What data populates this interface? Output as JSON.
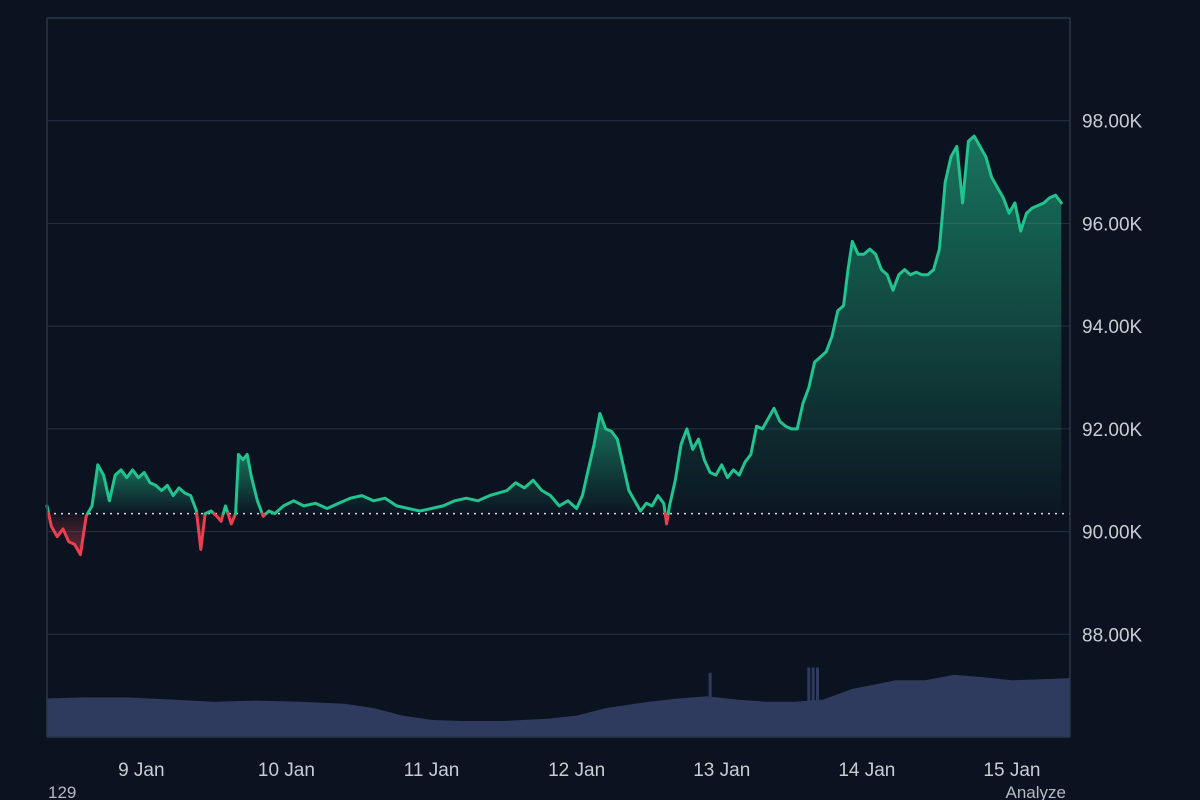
{
  "chart_data": {
    "type": "area",
    "title": "",
    "xlabel": "",
    "ylabel": "",
    "x_ticks": [
      "9 Jan",
      "10 Jan",
      "11 Jan",
      "12 Jan",
      "13 Jan",
      "14 Jan",
      "15 Jan"
    ],
    "y_ticks": [
      "88.00K",
      "90.00K",
      "92.00K",
      "94.00K",
      "96.00K",
      "98.00K"
    ],
    "y_tick_values": [
      88000,
      90000,
      92000,
      94000,
      96000,
      98000
    ],
    "ylim": [
      86000,
      100000
    ],
    "xlim_days": [
      8.35,
      15.4
    ],
    "baseline": 90350,
    "grid": true,
    "colors": {
      "background": "#0b1320",
      "up": "#22c38e",
      "down": "#e8404f",
      "volume": "#2e3a5e",
      "grid": "#263244"
    },
    "series": [
      {
        "values": [
          [
            8.35,
            90500
          ],
          [
            8.38,
            90100
          ],
          [
            8.42,
            89900
          ],
          [
            8.46,
            90050
          ],
          [
            8.5,
            89800
          ],
          [
            8.54,
            89750
          ],
          [
            8.58,
            89550
          ],
          [
            8.62,
            90300
          ],
          [
            8.66,
            90500
          ],
          [
            8.7,
            91300
          ],
          [
            8.74,
            91100
          ],
          [
            8.78,
            90600
          ],
          [
            8.82,
            91100
          ],
          [
            8.86,
            91200
          ],
          [
            8.9,
            91050
          ],
          [
            8.94,
            91200
          ],
          [
            8.98,
            91050
          ],
          [
            9.02,
            91150
          ],
          [
            9.06,
            90950
          ],
          [
            9.1,
            90900
          ],
          [
            9.14,
            90800
          ],
          [
            9.18,
            90900
          ],
          [
            9.22,
            90700
          ],
          [
            9.26,
            90850
          ],
          [
            9.3,
            90750
          ],
          [
            9.34,
            90700
          ],
          [
            9.38,
            90400
          ],
          [
            9.41,
            89650
          ],
          [
            9.44,
            90350
          ],
          [
            9.48,
            90400
          ],
          [
            9.52,
            90300
          ],
          [
            9.55,
            90200
          ],
          [
            9.58,
            90500
          ],
          [
            9.62,
            90150
          ],
          [
            9.65,
            90350
          ],
          [
            9.67,
            91500
          ],
          [
            9.7,
            91400
          ],
          [
            9.73,
            91500
          ],
          [
            9.76,
            91050
          ],
          [
            9.8,
            90600
          ],
          [
            9.84,
            90300
          ],
          [
            9.88,
            90400
          ],
          [
            9.92,
            90350
          ],
          [
            9.98,
            90500
          ],
          [
            10.05,
            90600
          ],
          [
            10.12,
            90500
          ],
          [
            10.2,
            90550
          ],
          [
            10.28,
            90450
          ],
          [
            10.36,
            90550
          ],
          [
            10.44,
            90650
          ],
          [
            10.52,
            90700
          ],
          [
            10.6,
            90600
          ],
          [
            10.68,
            90650
          ],
          [
            10.76,
            90500
          ],
          [
            10.84,
            90450
          ],
          [
            10.92,
            90400
          ],
          [
            11.0,
            90450
          ],
          [
            11.08,
            90500
          ],
          [
            11.16,
            90600
          ],
          [
            11.24,
            90650
          ],
          [
            11.32,
            90600
          ],
          [
            11.4,
            90700
          ],
          [
            11.46,
            90750
          ],
          [
            11.52,
            90800
          ],
          [
            11.58,
            90950
          ],
          [
            11.64,
            90850
          ],
          [
            11.7,
            91000
          ],
          [
            11.76,
            90800
          ],
          [
            11.82,
            90700
          ],
          [
            11.88,
            90500
          ],
          [
            11.94,
            90600
          ],
          [
            12.0,
            90450
          ],
          [
            12.04,
            90700
          ],
          [
            12.08,
            91200
          ],
          [
            12.12,
            91700
          ],
          [
            12.16,
            92300
          ],
          [
            12.2,
            92000
          ],
          [
            12.24,
            91950
          ],
          [
            12.28,
            91800
          ],
          [
            12.32,
            91300
          ],
          [
            12.36,
            90800
          ],
          [
            12.4,
            90600
          ],
          [
            12.44,
            90400
          ],
          [
            12.48,
            90550
          ],
          [
            12.52,
            90500
          ],
          [
            12.56,
            90700
          ],
          [
            12.6,
            90550
          ],
          [
            12.62,
            90150
          ],
          [
            12.64,
            90500
          ],
          [
            12.68,
            91000
          ],
          [
            12.72,
            91700
          ],
          [
            12.76,
            92000
          ],
          [
            12.8,
            91600
          ],
          [
            12.84,
            91800
          ],
          [
            12.88,
            91400
          ],
          [
            12.92,
            91150
          ],
          [
            12.96,
            91100
          ],
          [
            13.0,
            91300
          ],
          [
            13.04,
            91050
          ],
          [
            13.08,
            91200
          ],
          [
            13.12,
            91100
          ],
          [
            13.16,
            91350
          ],
          [
            13.2,
            91500
          ],
          [
            13.24,
            92050
          ],
          [
            13.28,
            92000
          ],
          [
            13.32,
            92200
          ],
          [
            13.36,
            92400
          ],
          [
            13.4,
            92150
          ],
          [
            13.44,
            92050
          ],
          [
            13.48,
            92000
          ],
          [
            13.52,
            92000
          ],
          [
            13.56,
            92500
          ],
          [
            13.6,
            92800
          ],
          [
            13.64,
            93300
          ],
          [
            13.68,
            93400
          ],
          [
            13.72,
            93500
          ],
          [
            13.76,
            93800
          ],
          [
            13.8,
            94300
          ],
          [
            13.84,
            94400
          ],
          [
            13.87,
            95100
          ],
          [
            13.9,
            95650
          ],
          [
            13.94,
            95400
          ],
          [
            13.98,
            95400
          ],
          [
            14.02,
            95500
          ],
          [
            14.06,
            95400
          ],
          [
            14.1,
            95100
          ],
          [
            14.14,
            95000
          ],
          [
            14.18,
            94700
          ],
          [
            14.22,
            95000
          ],
          [
            14.26,
            95100
          ],
          [
            14.3,
            95000
          ],
          [
            14.34,
            95050
          ],
          [
            14.38,
            95000
          ],
          [
            14.42,
            95000
          ],
          [
            14.46,
            95100
          ],
          [
            14.5,
            95500
          ],
          [
            14.54,
            96800
          ],
          [
            14.58,
            97300
          ],
          [
            14.62,
            97500
          ],
          [
            14.66,
            96400
          ],
          [
            14.7,
            97600
          ],
          [
            14.74,
            97700
          ],
          [
            14.78,
            97500
          ],
          [
            14.82,
            97300
          ],
          [
            14.86,
            96900
          ],
          [
            14.9,
            96700
          ],
          [
            14.94,
            96500
          ],
          [
            14.98,
            96200
          ],
          [
            15.02,
            96400
          ],
          [
            15.06,
            95850
          ],
          [
            15.1,
            96200
          ],
          [
            15.14,
            96300
          ],
          [
            15.18,
            96350
          ],
          [
            15.22,
            96400
          ],
          [
            15.26,
            96500
          ],
          [
            15.3,
            96550
          ],
          [
            15.34,
            96400
          ]
        ]
      }
    ],
    "volume": [
      [
        8.35,
        0.36
      ],
      [
        8.6,
        0.37
      ],
      [
        8.9,
        0.37
      ],
      [
        9.2,
        0.35
      ],
      [
        9.5,
        0.33
      ],
      [
        9.8,
        0.34
      ],
      [
        10.1,
        0.33
      ],
      [
        10.4,
        0.31
      ],
      [
        10.6,
        0.27
      ],
      [
        10.8,
        0.2
      ],
      [
        11.0,
        0.16
      ],
      [
        11.2,
        0.15
      ],
      [
        11.5,
        0.15
      ],
      [
        11.8,
        0.17
      ],
      [
        12.0,
        0.2
      ],
      [
        12.2,
        0.27
      ],
      [
        12.5,
        0.33
      ],
      [
        12.7,
        0.36
      ],
      [
        12.9,
        0.38
      ],
      [
        13.1,
        0.35
      ],
      [
        13.3,
        0.33
      ],
      [
        13.5,
        0.33
      ],
      [
        13.7,
        0.35
      ],
      [
        13.9,
        0.45
      ],
      [
        14.2,
        0.53
      ],
      [
        14.4,
        0.53
      ],
      [
        14.6,
        0.58
      ],
      [
        14.8,
        0.56
      ],
      [
        15.0,
        0.53
      ],
      [
        15.2,
        0.54
      ],
      [
        15.4,
        0.55
      ]
    ],
    "volume_spikes": [
      [
        12.92,
        0.6
      ],
      [
        13.6,
        0.65
      ],
      [
        13.63,
        0.65
      ],
      [
        13.66,
        0.65
      ]
    ],
    "corner_labels": {
      "left": "129",
      "right": "Analyze"
    }
  }
}
